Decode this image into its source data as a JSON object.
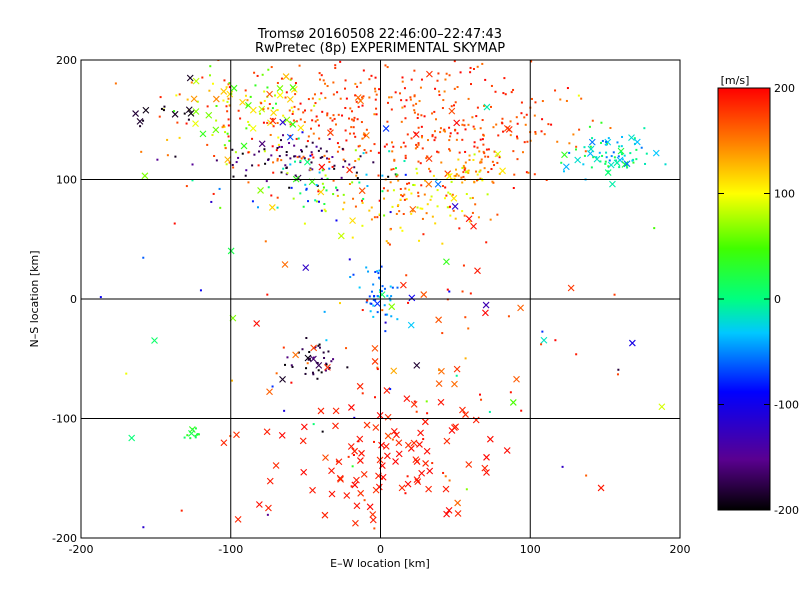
{
  "chart_data": {
    "type": "scatter",
    "title_line1": "Tromsø 20160508 22:46:00–22:47:43",
    "title_line2": "RwPretec (8p) EXPERIMENTAL SKYMAP",
    "xlabel": "E–W location [km]",
    "ylabel": "N–S location [km]",
    "xlim": [
      -200,
      200
    ],
    "ylim": [
      -200,
      200
    ],
    "xticks": [
      -200,
      -100,
      0,
      100,
      200
    ],
    "yticks": [
      -200,
      -100,
      0,
      100,
      200
    ],
    "grid": true,
    "colorbar": {
      "label": "[m/s]",
      "range": [
        -200,
        200
      ],
      "ticks": [
        -200,
        -100,
        0,
        100,
        200
      ],
      "colormap": "rainbow (black-purple-blue-cyan-green-yellow-red)"
    },
    "marker_types": [
      "dot",
      "x"
    ],
    "clusters": [
      {
        "x": -95,
        "y": 160,
        "sx": 25,
        "sy": 18,
        "vmin": 30,
        "vmax": 150,
        "n": 90,
        "xfrac": 0.35
      },
      {
        "x": -20,
        "y": 150,
        "sx": 55,
        "sy": 30,
        "vmin": 150,
        "vmax": 200,
        "n": 300,
        "xfrac": 0.02
      },
      {
        "x": 60,
        "y": 140,
        "sx": 40,
        "sy": 25,
        "vmin": 140,
        "vmax": 200,
        "n": 170,
        "xfrac": 0.02
      },
      {
        "x": 20,
        "y": 80,
        "sx": 25,
        "sy": 15,
        "vmin": 80,
        "vmax": 200,
        "n": 90,
        "xfrac": 0.05
      },
      {
        "x": 60,
        "y": 105,
        "sx": 12,
        "sy": 10,
        "vmin": 80,
        "vmax": 180,
        "n": 50,
        "xfrac": 0.05
      },
      {
        "x": -55,
        "y": 115,
        "sx": 25,
        "sy": 10,
        "vmin": -200,
        "vmax": -140,
        "n": 80,
        "xfrac": 0.05
      },
      {
        "x": 155,
        "y": 120,
        "sx": 13,
        "sy": 10,
        "vmin": -60,
        "vmax": 40,
        "n": 80,
        "xfrac": 0.3
      },
      {
        "x": -140,
        "y": 150,
        "sx": 15,
        "sy": 12,
        "vmin": -200,
        "vmax": -180,
        "n": 15,
        "xfrac": 0.6
      },
      {
        "x": -40,
        "y": 95,
        "sx": 30,
        "sy": 15,
        "vmin": -120,
        "vmax": 120,
        "n": 70,
        "xfrac": 0.15
      },
      {
        "x": 0,
        "y": 5,
        "sx": 6,
        "sy": 12,
        "vmin": -80,
        "vmax": -30,
        "n": 45,
        "xfrac": 0.05
      },
      {
        "x": -45,
        "y": -55,
        "sx": 8,
        "sy": 8,
        "vmin": -200,
        "vmax": -150,
        "n": 40,
        "xfrac": 0.1
      },
      {
        "x": -125,
        "y": -112,
        "sx": 3,
        "sy": 4,
        "vmin": 10,
        "vmax": 40,
        "n": 12,
        "xfrac": 0.05
      },
      {
        "x": 0,
        "y": -135,
        "sx": 40,
        "sy": 28,
        "vmin": 180,
        "vmax": 200,
        "n": 110,
        "xfrac": 0.75
      },
      {
        "x": 30,
        "y": -50,
        "sx": 60,
        "sy": 60,
        "vmin": 150,
        "vmax": 200,
        "n": 60,
        "xfrac": 0.4
      },
      {
        "x": 0,
        "y": 0,
        "sx": 120,
        "sy": 110,
        "vmin": -200,
        "vmax": 200,
        "n": 90,
        "xfrac": 0.5
      }
    ]
  }
}
